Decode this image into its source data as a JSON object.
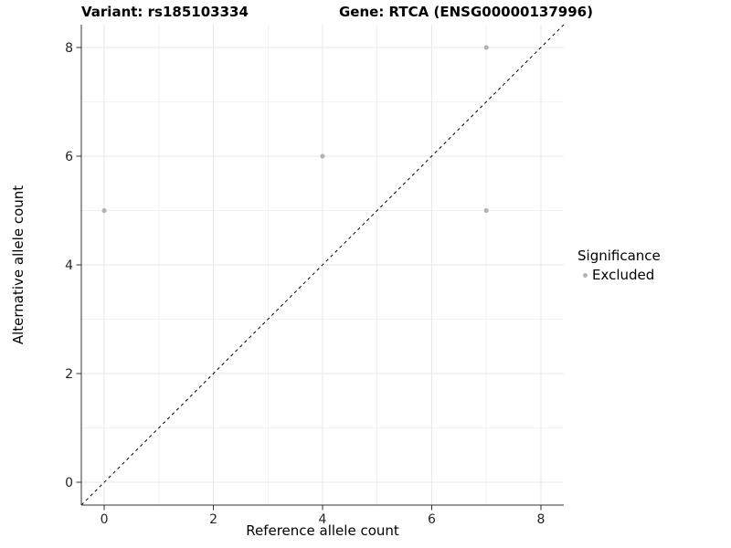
{
  "titles": {
    "variant": "Variant: rs185103334",
    "gene": "Gene: RTCA (ENSG00000137996)"
  },
  "axes": {
    "x_label": "Reference allele count",
    "y_label": "Alternative allele count"
  },
  "legend": {
    "title": "Significance",
    "items": [
      {
        "label": "Excluded",
        "color": "#b3b3b3"
      }
    ]
  },
  "chart_data": {
    "type": "scatter",
    "title": "Variant: rs185103334 | Gene: RTCA (ENSG00000137996)",
    "xlabel": "Reference allele count",
    "ylabel": "Alternative allele count",
    "series": [
      {
        "name": "Excluded",
        "color": "#b3b3b3",
        "points": [
          {
            "x": 0,
            "y": 5
          },
          {
            "x": 4,
            "y": 6
          },
          {
            "x": 7,
            "y": 5
          },
          {
            "x": 7,
            "y": 8
          }
        ]
      }
    ],
    "x_ticks": [
      0,
      2,
      4,
      6,
      8
    ],
    "y_ticks": [
      0,
      2,
      4,
      6,
      8
    ],
    "x_minor": [
      1,
      3,
      5,
      7
    ],
    "y_minor": [
      1,
      3,
      5,
      7
    ],
    "xlim": [
      -0.42,
      8.42
    ],
    "ylim": [
      -0.42,
      8.42
    ],
    "reference_line": {
      "slope": 1,
      "intercept": 0,
      "style": "dashed",
      "color": "#000000"
    },
    "grid": true,
    "legend_position": "right",
    "colors": {
      "major_grid": "#e7e7e7",
      "minor_grid": "#f2f2f2",
      "axis": "#333333",
      "tick_text": "#262626",
      "point": "#b3b3b3"
    }
  }
}
